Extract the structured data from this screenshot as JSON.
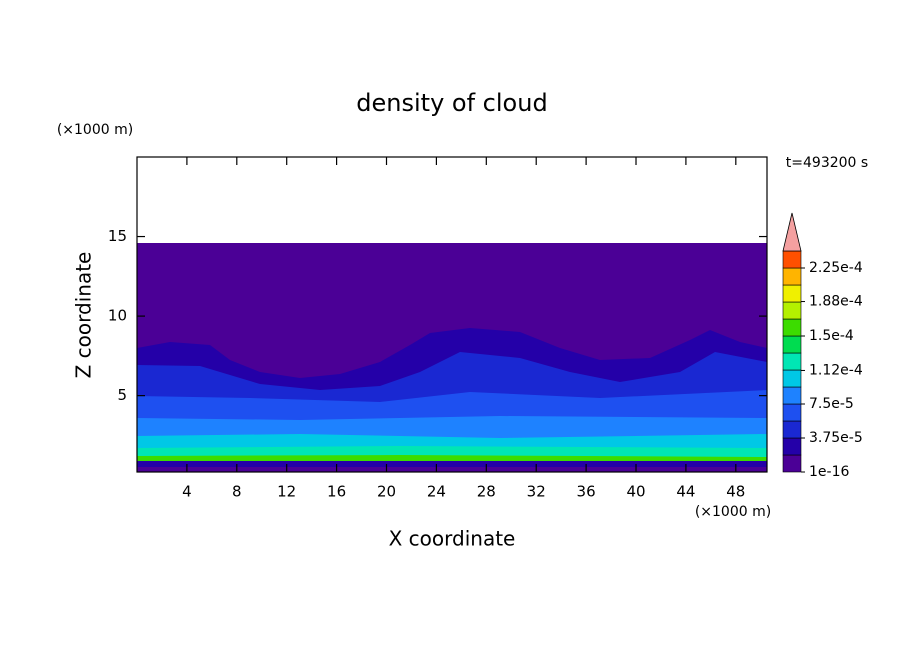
{
  "chart_data": {
    "type": "contour",
    "title": "density of cloud",
    "x_label": "X coordinate",
    "y_label": "Z coordinate",
    "x_unit": "(×1000 m)",
    "y_unit": "(×1000 m)",
    "annotation": "t=493200 s",
    "xlim": [
      0,
      50.5
    ],
    "xticks": [
      4,
      8,
      12,
      16,
      20,
      24,
      28,
      32,
      36,
      40,
      44,
      48
    ],
    "ylim": [
      0.2,
      20
    ],
    "yticks": [
      5,
      10,
      15
    ],
    "colorbar": {
      "levels": [
        {
          "value": 1e-16,
          "label": "1e-16"
        },
        {
          "value": 3.75e-05,
          "label": "3.75e-5"
        },
        {
          "value": 7.5e-05,
          "label": "7.5e-5"
        },
        {
          "value": 0.000112,
          "label": "1.12e-4"
        },
        {
          "value": 0.00015,
          "label": "1.5e-4"
        },
        {
          "value": 0.000188,
          "label": "1.88e-4"
        },
        {
          "value": 0.000225,
          "label": "2.25e-4"
        }
      ],
      "colors": [
        "#4b0096",
        "#2400a8",
        "#1a28d2",
        "#1e50f0",
        "#1e82ff",
        "#00c8e6",
        "#00e6b4",
        "#00dc50",
        "#3cdc00",
        "#b4f000",
        "#f0f000",
        "#ffb400",
        "#ff5000"
      ],
      "extend_color": "#f4a0a0"
    }
  }
}
